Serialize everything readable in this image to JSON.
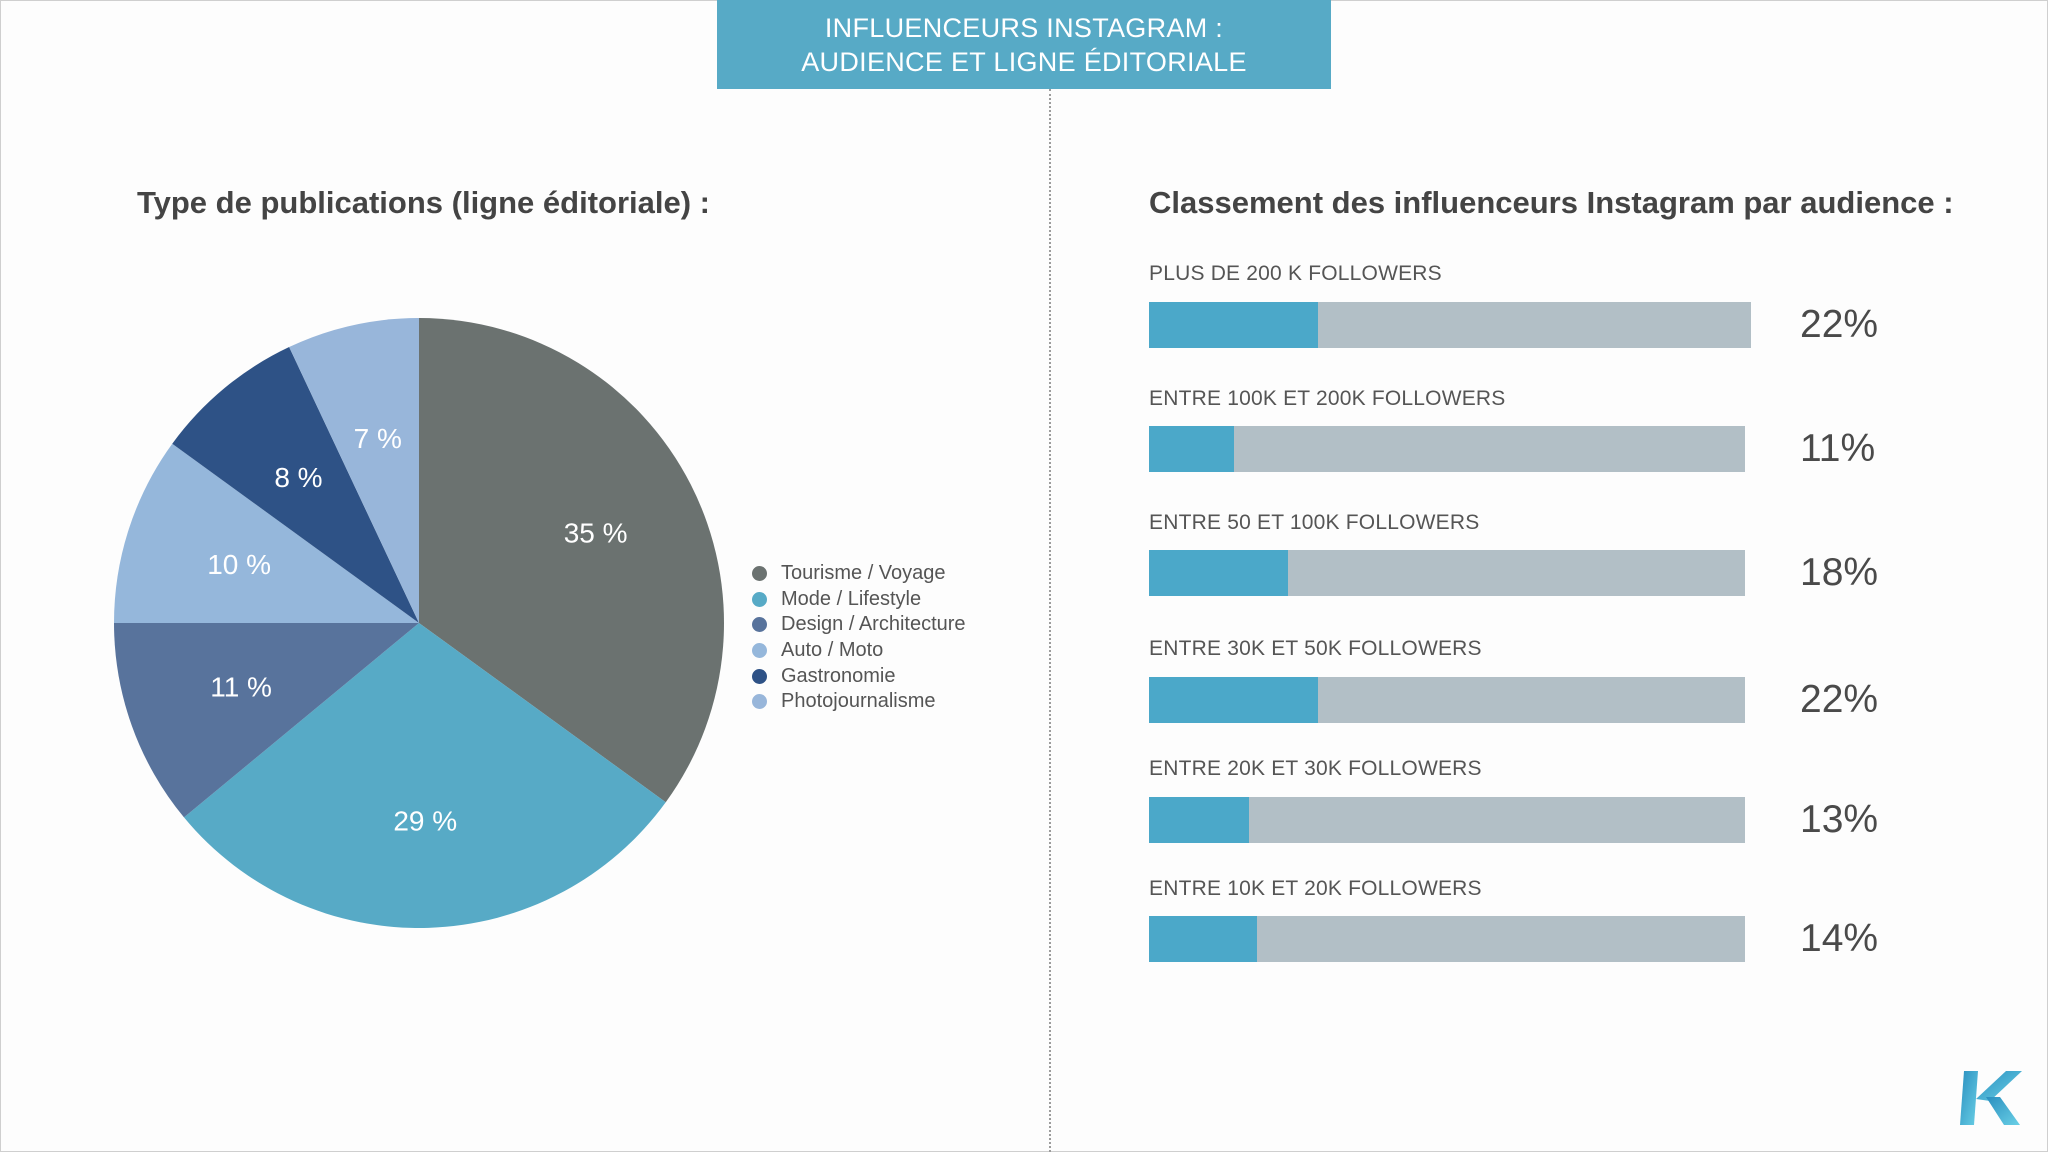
{
  "banner": {
    "line1": "INFLUENCEURS INSTAGRAM :",
    "line2": "AUDIENCE ET LIGNE ÉDITORIALE",
    "color": "#57aac6"
  },
  "chart_data": [
    {
      "type": "pie",
      "title": "Type de publications (ligne éditoriale) :",
      "legend_position": "right",
      "slices": [
        {
          "name": "Tourisme / Voyage",
          "value": 35,
          "label": "35 %",
          "color": "#6b7270"
        },
        {
          "name": "Mode / Lifestyle",
          "value": 29,
          "label": "29 %",
          "color": "#57aac6"
        },
        {
          "name": "Design / Architecture",
          "value": 11,
          "label": "11 %",
          "color": "#58739c"
        },
        {
          "name": "Auto / Moto",
          "value": 10,
          "label": "10 %",
          "color": "#95b7db"
        },
        {
          "name": "Gastronomie",
          "value": 8,
          "label": "8 %",
          "color": "#2e5286"
        },
        {
          "name": "Photojournalisme",
          "value": 7,
          "label": "7 %",
          "color": "#98b6da"
        }
      ]
    },
    {
      "type": "bar",
      "orientation": "horizontal",
      "title": "Classement des influenceurs Instagram par audience :",
      "track_color": "#b2bfc6",
      "fill_color": "#4ba8c9",
      "bars": [
        {
          "label": "PLUS DE 200 K FOLLOWERS",
          "value": 22,
          "value_label": "22%"
        },
        {
          "label": "ENTRE 100K ET 200K FOLLOWERS",
          "value": 11,
          "value_label": "11%"
        },
        {
          "label": "ENTRE 50 ET 100K FOLLOWERS",
          "value": 18,
          "value_label": "18%"
        },
        {
          "label": "ENTRE 30K ET 50K FOLLOWERS",
          "value": 22,
          "value_label": "22%"
        },
        {
          "label": "ENTRE 20K ET 30K FOLLOWERS",
          "value": 13,
          "value_label": "13%"
        },
        {
          "label": "ENTRE 10K ET 20K FOLLOWERS",
          "value": 14,
          "value_label": "14%"
        }
      ]
    }
  ],
  "logo": {
    "icon": "k-logo-icon",
    "colors": [
      "#2a8fbf",
      "#6ad0e6"
    ]
  }
}
